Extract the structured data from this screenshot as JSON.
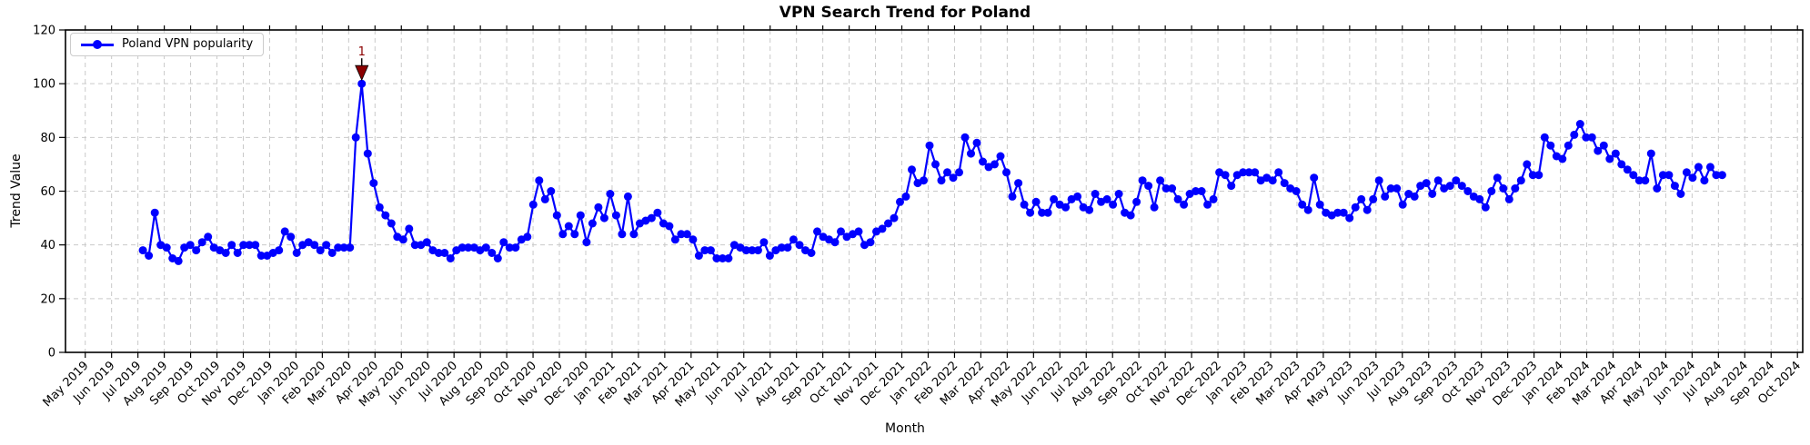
{
  "chart_data": {
    "type": "line",
    "title": "VPN Search Trend for Poland",
    "xlabel": "Month",
    "ylabel": "Trend Value",
    "ylim": [
      0,
      120
    ],
    "yticks": [
      0,
      20,
      40,
      60,
      80,
      100,
      120
    ],
    "grid": true,
    "grid_color": "#c9c9c9",
    "x_tick_labels": [
      "May 2019",
      "Jun 2019",
      "Jul 2019",
      "Aug 2019",
      "Sep 2019",
      "Oct 2019",
      "Nov 2019",
      "Dec 2019",
      "Jan 2020",
      "Feb 2020",
      "Mar 2020",
      "Apr 2020",
      "May 2020",
      "Jun 2020",
      "Jul 2020",
      "Aug 2020",
      "Sep 2020",
      "Oct 2020",
      "Nov 2020",
      "Dec 2020",
      "Jan 2021",
      "Feb 2021",
      "Mar 2021",
      "Apr 2021",
      "May 2021",
      "Jun 2021",
      "Jul 2021",
      "Aug 2021",
      "Sep 2021",
      "Oct 2021",
      "Nov 2021",
      "Dec 2021",
      "Jan 2022",
      "Feb 2022",
      "Mar 2022",
      "Apr 2022",
      "May 2022",
      "Jun 2022",
      "Jul 2022",
      "Aug 2022",
      "Sep 2022",
      "Oct 2022",
      "Nov 2022",
      "Dec 2022",
      "Jan 2023",
      "Feb 2023",
      "Mar 2023",
      "Apr 2023",
      "May 2023",
      "Jun 2023",
      "Jul 2023",
      "Aug 2023",
      "Sep 2023",
      "Oct 2023",
      "Nov 2023",
      "Dec 2023",
      "Jan 2024",
      "Feb 2024",
      "Mar 2024",
      "Apr 2024",
      "May 2024",
      "Jun 2024",
      "Jul 2024",
      "Aug 2024",
      "Sep 2024",
      "Oct 2024"
    ],
    "legend": {
      "position": "upper-left",
      "entries": [
        {
          "label": "Poland VPN popularity",
          "color": "#0000ff"
        }
      ]
    },
    "x_start_month_index": 2.19,
    "x_end_month_index": 62.14,
    "series": [
      {
        "name": "Poland VPN popularity",
        "color": "#0000ff",
        "marker": "circle",
        "frequency": "weekly",
        "values": [
          38,
          36,
          52,
          40,
          39,
          35,
          34,
          39,
          40,
          38,
          41,
          43,
          39,
          38,
          37,
          40,
          37,
          40,
          40,
          40,
          36,
          36,
          37,
          38,
          45,
          43,
          37,
          40,
          41,
          40,
          38,
          40,
          37,
          39,
          39,
          39,
          80,
          100,
          74,
          63,
          54,
          51,
          48,
          43,
          42,
          46,
          40,
          40,
          41,
          38,
          37,
          37,
          35,
          38,
          39,
          39,
          39,
          38,
          39,
          37,
          35,
          41,
          39,
          39,
          42,
          43,
          55,
          64,
          57,
          60,
          51,
          44,
          47,
          44,
          51,
          41,
          48,
          54,
          50,
          59,
          51,
          44,
          58,
          44,
          48,
          49,
          50,
          52,
          48,
          47,
          42,
          44,
          44,
          42,
          36,
          38,
          38,
          35,
          35,
          35,
          40,
          39,
          38,
          38,
          38,
          41,
          36,
          38,
          39,
          39,
          42,
          40,
          38,
          37,
          45,
          43,
          42,
          41,
          45,
          43,
          44,
          45,
          40,
          41,
          45,
          46,
          48,
          50,
          56,
          58,
          68,
          63,
          64,
          77,
          70,
          64,
          67,
          65,
          67,
          80,
          74,
          78,
          71,
          69,
          70,
          73,
          67,
          58,
          63,
          55,
          52,
          56,
          52,
          52,
          57,
          55,
          54,
          57,
          58,
          54,
          53,
          59,
          56,
          57,
          55,
          59,
          52,
          51,
          56,
          64,
          62,
          54,
          64,
          61,
          61,
          57,
          55,
          59,
          60,
          60,
          55,
          57,
          67,
          66,
          62,
          66,
          67,
          67,
          67,
          64,
          65,
          64,
          67,
          63,
          61,
          60,
          55,
          53,
          65,
          55,
          52,
          51,
          52,
          52,
          50,
          54,
          57,
          53,
          57,
          64,
          58,
          61,
          61,
          55,
          59,
          58,
          62,
          63,
          59,
          64,
          61,
          62,
          64,
          62,
          60,
          58,
          57,
          54,
          60,
          65,
          61,
          57,
          61,
          64,
          70,
          66,
          66,
          80,
          77,
          73,
          72,
          77,
          81,
          85,
          80,
          80,
          75,
          77,
          72,
          74,
          70,
          68,
          66,
          64,
          64,
          74,
          61,
          66,
          66,
          62,
          59,
          67,
          65,
          69,
          64,
          69,
          66,
          66
        ]
      }
    ],
    "annotation": {
      "label": "1",
      "marker": "triangle-down",
      "color": "#8b0000",
      "point_index": 37,
      "value": 100
    }
  }
}
